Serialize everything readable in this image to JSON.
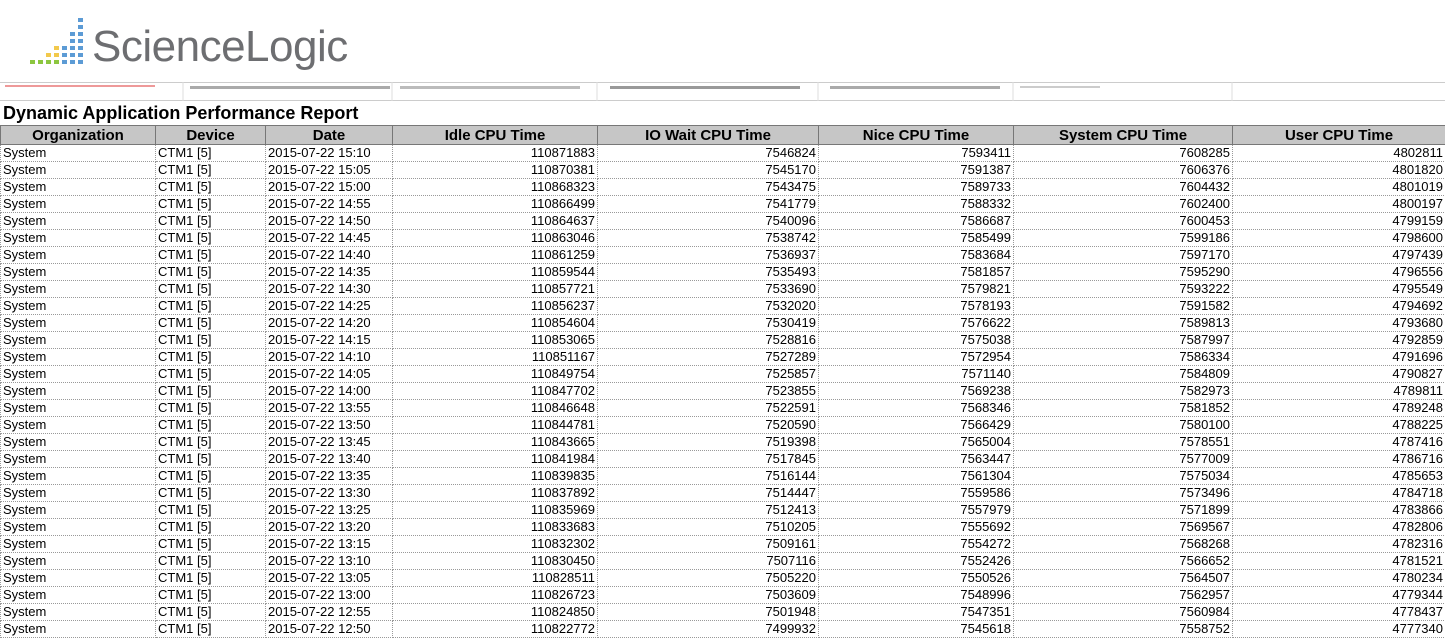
{
  "logo": {
    "text": "ScienceLogic"
  },
  "report": {
    "title": "Dynamic Application Performance Report",
    "columns": [
      "Organization",
      "Device",
      "Date",
      "Idle CPU Time",
      "IO Wait CPU Time",
      "Nice CPU Time",
      "System CPU Time",
      "User CPU Time"
    ],
    "rows": [
      [
        "System",
        "CTM1 [5]",
        "2015-07-22 15:10",
        110871883,
        7546824,
        7593411,
        7608285,
        4802811
      ],
      [
        "System",
        "CTM1 [5]",
        "2015-07-22 15:05",
        110870381,
        7545170,
        7591387,
        7606376,
        4801820
      ],
      [
        "System",
        "CTM1 [5]",
        "2015-07-22 15:00",
        110868323,
        7543475,
        7589733,
        7604432,
        4801019
      ],
      [
        "System",
        "CTM1 [5]",
        "2015-07-22 14:55",
        110866499,
        7541779,
        7588332,
        7602400,
        4800197
      ],
      [
        "System",
        "CTM1 [5]",
        "2015-07-22 14:50",
        110864637,
        7540096,
        7586687,
        7600453,
        4799159
      ],
      [
        "System",
        "CTM1 [5]",
        "2015-07-22 14:45",
        110863046,
        7538742,
        7585499,
        7599186,
        4798600
      ],
      [
        "System",
        "CTM1 [5]",
        "2015-07-22 14:40",
        110861259,
        7536937,
        7583684,
        7597170,
        4797439
      ],
      [
        "System",
        "CTM1 [5]",
        "2015-07-22 14:35",
        110859544,
        7535493,
        7581857,
        7595290,
        4796556
      ],
      [
        "System",
        "CTM1 [5]",
        "2015-07-22 14:30",
        110857721,
        7533690,
        7579821,
        7593222,
        4795549
      ],
      [
        "System",
        "CTM1 [5]",
        "2015-07-22 14:25",
        110856237,
        7532020,
        7578193,
        7591582,
        4794692
      ],
      [
        "System",
        "CTM1 [5]",
        "2015-07-22 14:20",
        110854604,
        7530419,
        7576622,
        7589813,
        4793680
      ],
      [
        "System",
        "CTM1 [5]",
        "2015-07-22 14:15",
        110853065,
        7528816,
        7575038,
        7587997,
        4792859
      ],
      [
        "System",
        "CTM1 [5]",
        "2015-07-22 14:10",
        110851167,
        7527289,
        7572954,
        7586334,
        4791696
      ],
      [
        "System",
        "CTM1 [5]",
        "2015-07-22 14:05",
        110849754,
        7525857,
        7571140,
        7584809,
        4790827
      ],
      [
        "System",
        "CTM1 [5]",
        "2015-07-22 14:00",
        110847702,
        7523855,
        7569238,
        7582973,
        4789811
      ],
      [
        "System",
        "CTM1 [5]",
        "2015-07-22 13:55",
        110846648,
        7522591,
        7568346,
        7581852,
        4789248
      ],
      [
        "System",
        "CTM1 [5]",
        "2015-07-22 13:50",
        110844781,
        7520590,
        7566429,
        7580100,
        4788225
      ],
      [
        "System",
        "CTM1 [5]",
        "2015-07-22 13:45",
        110843665,
        7519398,
        7565004,
        7578551,
        4787416
      ],
      [
        "System",
        "CTM1 [5]",
        "2015-07-22 13:40",
        110841984,
        7517845,
        7563447,
        7577009,
        4786716
      ],
      [
        "System",
        "CTM1 [5]",
        "2015-07-22 13:35",
        110839835,
        7516144,
        7561304,
        7575034,
        4785653
      ],
      [
        "System",
        "CTM1 [5]",
        "2015-07-22 13:30",
        110837892,
        7514447,
        7559586,
        7573496,
        4784718
      ],
      [
        "System",
        "CTM1 [5]",
        "2015-07-22 13:25",
        110835969,
        7512413,
        7557979,
        7571899,
        4783866
      ],
      [
        "System",
        "CTM1 [5]",
        "2015-07-22 13:20",
        110833683,
        7510205,
        7555692,
        7569567,
        4782806
      ],
      [
        "System",
        "CTM1 [5]",
        "2015-07-22 13:15",
        110832302,
        7509161,
        7554272,
        7568268,
        4782316
      ],
      [
        "System",
        "CTM1 [5]",
        "2015-07-22 13:10",
        110830450,
        7507116,
        7552426,
        7566652,
        4781521
      ],
      [
        "System",
        "CTM1 [5]",
        "2015-07-22 13:05",
        110828511,
        7505220,
        7550526,
        7564507,
        4780234
      ],
      [
        "System",
        "CTM1 [5]",
        "2015-07-22 13:00",
        110826723,
        7503609,
        7548996,
        7562957,
        4779344
      ],
      [
        "System",
        "CTM1 [5]",
        "2015-07-22 12:55",
        110824850,
        7501948,
        7547351,
        7560984,
        4778437
      ],
      [
        "System",
        "CTM1 [5]",
        "2015-07-22 12:50",
        110822772,
        7499932,
        7545618,
        7558752,
        4777340
      ]
    ]
  }
}
